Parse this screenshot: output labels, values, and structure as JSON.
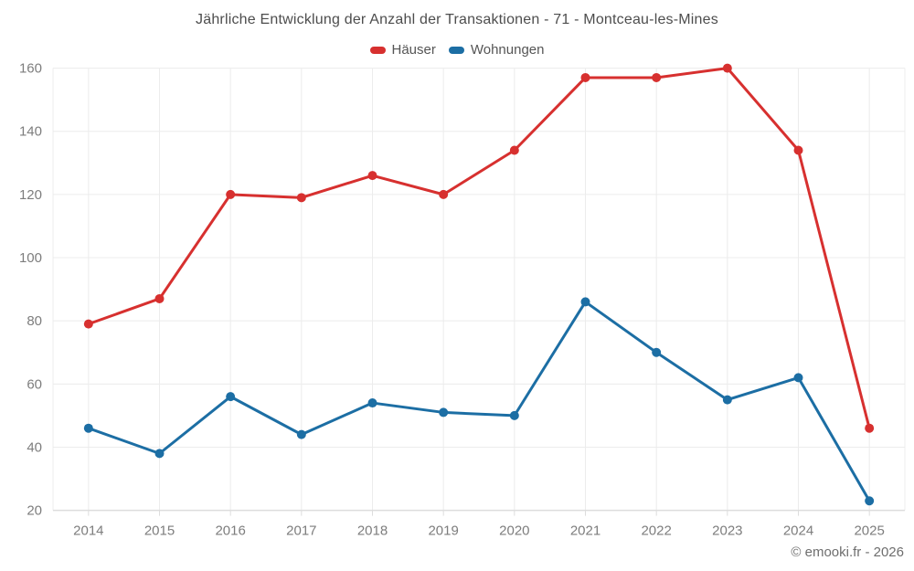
{
  "title": "Jährliche Entwicklung der Anzahl der Transaktionen - 71 - Montceau-les-Mines",
  "footer": "© emooki.fr - 2026",
  "colors": {
    "haeuser_red": "#d7302f",
    "wohnungen_blue": "#1c6ea4",
    "grid_line": "#ececec",
    "axis_line": "#dddddd",
    "tick_label": "#7d7d7d",
    "title_text": "#4d4d4d",
    "legend_text": "#555555",
    "footer_text": "#6e6e6e"
  },
  "chart_data": {
    "type": "line",
    "title": "Jährliche Entwicklung der Anzahl der Transaktionen - 71 - Montceau-les-Mines",
    "categories": [
      "2014",
      "2015",
      "2016",
      "2017",
      "2018",
      "2019",
      "2020",
      "2021",
      "2022",
      "2023",
      "2024",
      "2025"
    ],
    "series": [
      {
        "name": "Häuser",
        "color": "#d7302f",
        "values": [
          79,
          87,
          120,
          119,
          126,
          120,
          134,
          157,
          157,
          160,
          134,
          46
        ]
      },
      {
        "name": "Wohnungen",
        "color": "#1c6ea4",
        "values": [
          46,
          38,
          56,
          44,
          54,
          51,
          50,
          86,
          70,
          55,
          62,
          23
        ]
      }
    ],
    "xlabel": "",
    "ylabel": "",
    "ylim": [
      20,
      160
    ],
    "yticks": [
      20,
      40,
      60,
      80,
      100,
      120,
      140,
      160
    ],
    "grid": true,
    "legend_position": "top",
    "marker": "circle"
  }
}
